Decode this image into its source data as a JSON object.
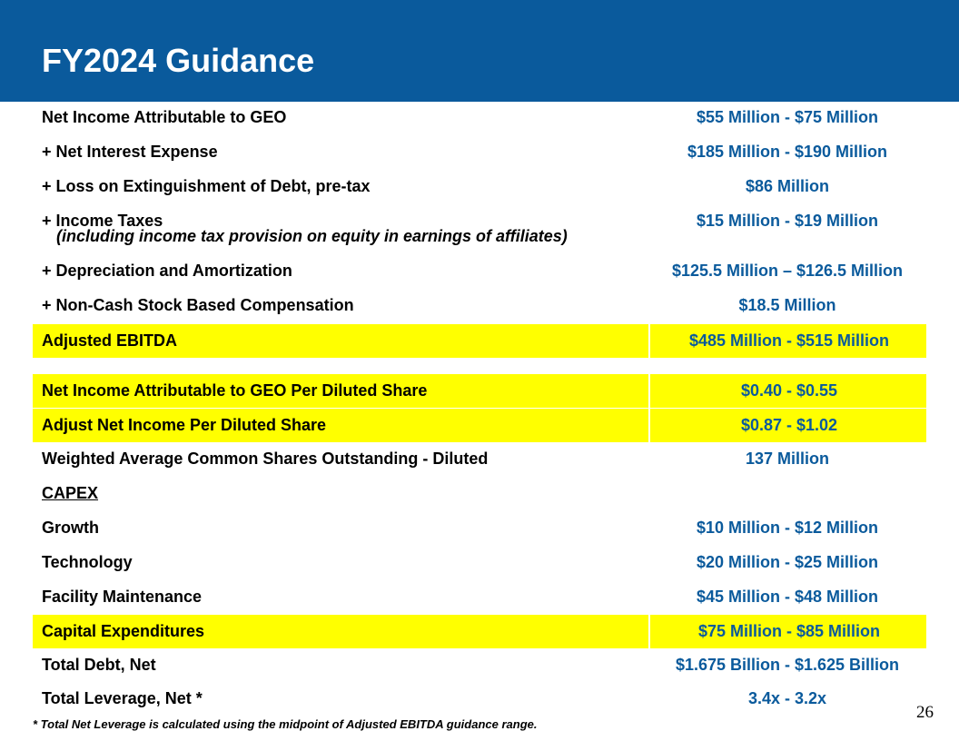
{
  "header": {
    "title": "FY2024 Guidance"
  },
  "table": {
    "rows": [
      {
        "label": "Net Income Attributable to GEO",
        "value": "$55 Million -  $75 Million"
      },
      {
        "label": "+ Net Interest Expense",
        "value": "$185 Million - $190 Million"
      },
      {
        "label": "+ Loss on Extinguishment of Debt, pre-tax",
        "value": "$86 Million"
      },
      {
        "label": "+ Income Taxes",
        "sublabel": "(including income tax provision on equity in earnings of affiliates)",
        "value": "$15 Million - $19 Million"
      },
      {
        "label": "+ Depreciation and Amortization",
        "value": "$125.5 Million – $126.5 Million"
      },
      {
        "label": "+ Non-Cash Stock Based Compensation",
        "value": "$18.5 Million"
      },
      {
        "label": "Adjusted EBITDA",
        "value": "$485 Million -  $515 Million"
      },
      {
        "label": "Net Income Attributable to GEO Per Diluted Share",
        "value": "$0.40 - $0.55"
      },
      {
        "label": "Adjust Net Income Per Diluted Share",
        "value": "$0.87 - $1.02"
      },
      {
        "label": "Weighted Average Common Shares Outstanding - Diluted",
        "value": "137 Million"
      },
      {
        "label": "CAPEX",
        "value": ""
      },
      {
        "label": "Growth",
        "value": "$10 Million - $12 Million"
      },
      {
        "label": "Technology",
        "value": "$20 Million - $25 Million"
      },
      {
        "label": "Facility Maintenance",
        "value": "$45 Million - $48 Million"
      },
      {
        "label": "Capital Expenditures",
        "value": "$75 Million - $85 Million"
      },
      {
        "label": "Total Debt, Net",
        "value": "$1.675 Billion - $1.625 Billion"
      },
      {
        "label": "Total Leverage, Net *",
        "value": "3.4x - 3.2x"
      }
    ]
  },
  "footnote": "* Total Net Leverage is calculated using the midpoint of Adjusted EBITDA guidance range.",
  "page_number": "26",
  "colors": {
    "header": "#0a5a9c",
    "value_text": "#0a5a9c",
    "highlight": "#ffff00"
  }
}
